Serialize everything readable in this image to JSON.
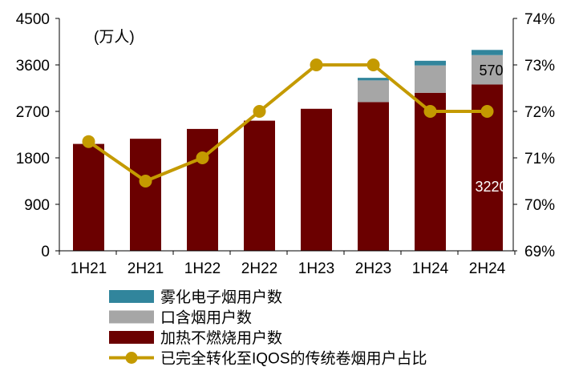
{
  "chart_data": {
    "type": "bar",
    "stacked": true,
    "unit_label": "(万人)",
    "categories": [
      "1H21",
      "2H21",
      "1H22",
      "2H22",
      "1H23",
      "2H23",
      "1H24",
      "2H24"
    ],
    "series": [
      {
        "name": "加热不燃烧用户数",
        "kind": "bar",
        "axis": "left",
        "color": "#6b0000",
        "values": [
          2070,
          2170,
          2360,
          2520,
          2750,
          2880,
          3060,
          3220
        ]
      },
      {
        "name": "口含烟用户数",
        "kind": "bar",
        "axis": "left",
        "color": "#a6a6a6",
        "values": [
          0,
          0,
          0,
          0,
          0,
          420,
          530,
          570
        ]
      },
      {
        "name": "雾化电子烟用户数",
        "kind": "bar",
        "axis": "left",
        "color": "#31859c",
        "values": [
          0,
          0,
          0,
          0,
          0,
          50,
          90,
          100
        ]
      },
      {
        "name": "已完全转化至IQOS的传统卷烟用户占比",
        "kind": "line",
        "axis": "right",
        "color": "#c49a00",
        "values": [
          71.35,
          70.5,
          71.0,
          72.0,
          73.0,
          73.0,
          72.0,
          72.0
        ]
      }
    ],
    "left_axis": {
      "min": 0,
      "max": 4500,
      "ticks": [
        "0",
        "900",
        "1800",
        "2700",
        "3600",
        "4500"
      ]
    },
    "right_axis": {
      "min": 69,
      "max": 74,
      "ticks": [
        "69%",
        "70%",
        "71%",
        "72%",
        "73%",
        "74%"
      ]
    },
    "data_labels": [
      {
        "category": "2H24",
        "series": "口含烟用户数",
        "text": "570"
      },
      {
        "category": "2H24",
        "series": "加热不燃烧用户数",
        "text": "3220"
      }
    ],
    "legend_position": "bottom",
    "grid": false
  }
}
